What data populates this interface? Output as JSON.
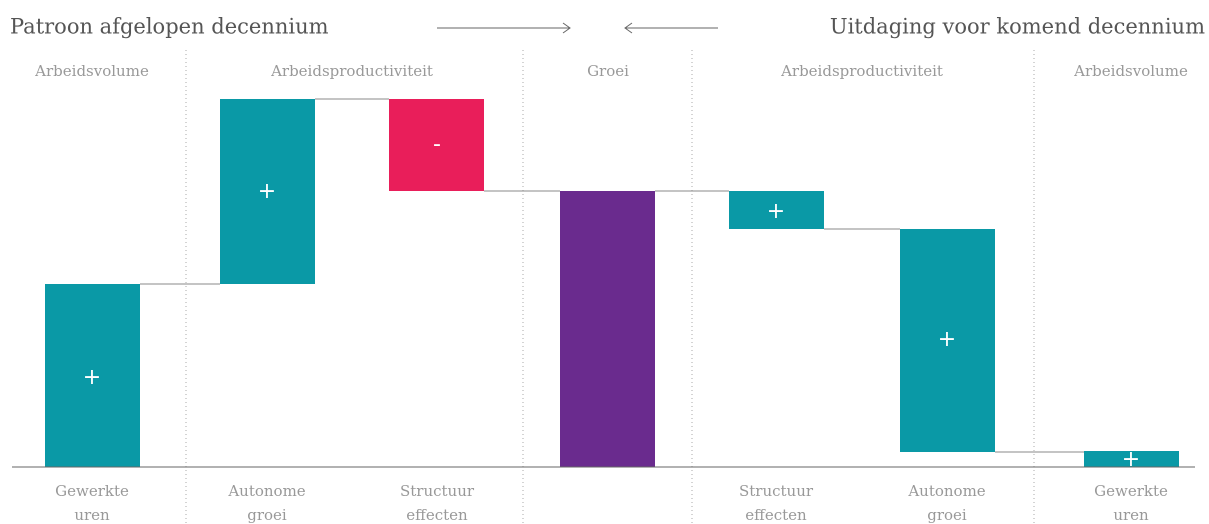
{
  "header": {
    "left_title": "Patroon afgelopen decennium",
    "right_title": "Uitdaging voor komend decennium"
  },
  "sections": [
    "Arbeidsvolume",
    "Arbeidsproductiviteit",
    "Groei",
    "Arbeidsproductiviteit",
    "Arbeidsvolume"
  ],
  "bars": [
    {
      "sign": "+",
      "label": [
        "Gewerkte",
        "uren"
      ]
    },
    {
      "sign": "+",
      "label": [
        "Autonome",
        "groei"
      ]
    },
    {
      "sign": "-",
      "label": [
        "Structuur",
        "effecten"
      ]
    },
    {
      "sign": "+",
      "label": [
        "Structuur",
        "effecten"
      ]
    },
    {
      "sign": "+",
      "label": [
        "Autonome",
        "groei"
      ]
    },
    {
      "sign": "+",
      "label": [
        "Gewerkte",
        "uren"
      ]
    }
  ]
}
